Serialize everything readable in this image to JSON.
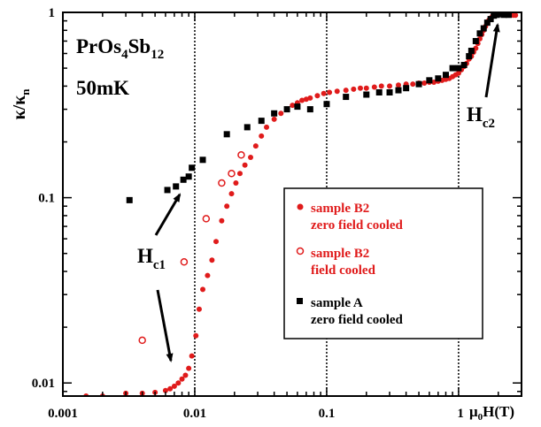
{
  "chart_data": {
    "type": "scatter",
    "title": "",
    "x_axis": {
      "scale": "log",
      "range": [
        0.001,
        3
      ],
      "tick_labels": [
        "0.001",
        "0.01",
        "0.1",
        "1"
      ],
      "tick_values": [
        0.001,
        0.01,
        0.1,
        1
      ],
      "label_main": "μ",
      "label_sub": "0",
      "label_rest": "H(T)"
    },
    "y_axis": {
      "scale": "log",
      "range": [
        0.0085,
        1.0
      ],
      "tick_labels": [
        "0.01",
        "0.1",
        "1"
      ],
      "tick_values": [
        0.01,
        0.1,
        1
      ],
      "label_main": "κ/κ",
      "label_sub": "n"
    },
    "grid": {
      "vertical_dotted_at": [
        0.01,
        0.1,
        1
      ]
    },
    "colors": {
      "red": "#e01b1b",
      "black": "#000000",
      "axis": "#000000"
    },
    "annotations": {
      "material_main": "PrOs",
      "material_sub1": "4",
      "material_mid": "Sb",
      "material_sub2": "12",
      "temperature": "50mK",
      "hc1_main": "H",
      "hc1_sub": "c1",
      "hc2_main": "H",
      "hc2_sub": "c2"
    },
    "legend": {
      "placement": "center-right",
      "entries": [
        {
          "line1": "sample B2",
          "line2": "zero field cooled",
          "marker": "filled-circle",
          "color": "#e01b1b"
        },
        {
          "line1": "sample B2",
          "line2": "field cooled",
          "marker": "open-circle",
          "color": "#e01b1b"
        },
        {
          "line1": "sample A",
          "line2": "zero field cooled",
          "marker": "filled-square",
          "color": "#000000"
        }
      ]
    },
    "series": [
      {
        "name": "sample B2 zero field cooled",
        "marker": "filled-circle",
        "color": "#e01b1b",
        "x": [
          0.0015,
          0.002,
          0.003,
          0.004,
          0.005,
          0.006,
          0.0065,
          0.007,
          0.0075,
          0.008,
          0.0085,
          0.009,
          0.0095,
          0.0102,
          0.0108,
          0.0115,
          0.0125,
          0.0135,
          0.0145,
          0.016,
          0.0175,
          0.019,
          0.0205,
          0.022,
          0.024,
          0.0265,
          0.029,
          0.032,
          0.035,
          0.04,
          0.045,
          0.05,
          0.055,
          0.06,
          0.065,
          0.07,
          0.075,
          0.085,
          0.095,
          0.105,
          0.12,
          0.14,
          0.16,
          0.18,
          0.2,
          0.23,
          0.26,
          0.3,
          0.35,
          0.4,
          0.45,
          0.5,
          0.55,
          0.6,
          0.65,
          0.7,
          0.75,
          0.8,
          0.85,
          0.9,
          0.95,
          1.0,
          1.05,
          1.1,
          1.15,
          1.2,
          1.25,
          1.3,
          1.35,
          1.4,
          1.45,
          1.5,
          1.55,
          1.6,
          1.65,
          1.7,
          1.75,
          1.8,
          1.85,
          1.9,
          1.95,
          2.0,
          2.05,
          2.1,
          2.15,
          2.2,
          2.3,
          2.4,
          2.5,
          2.6,
          2.7
        ],
        "y": [
          0.0085,
          0.0085,
          0.0088,
          0.0088,
          0.0089,
          0.0091,
          0.0093,
          0.0096,
          0.01,
          0.0105,
          0.011,
          0.012,
          0.014,
          0.018,
          0.025,
          0.032,
          0.038,
          0.046,
          0.058,
          0.075,
          0.09,
          0.105,
          0.12,
          0.135,
          0.15,
          0.165,
          0.19,
          0.215,
          0.24,
          0.265,
          0.285,
          0.3,
          0.315,
          0.325,
          0.335,
          0.34,
          0.345,
          0.355,
          0.365,
          0.37,
          0.375,
          0.38,
          0.385,
          0.39,
          0.39,
          0.395,
          0.4,
          0.4,
          0.405,
          0.41,
          0.41,
          0.415,
          0.415,
          0.42,
          0.42,
          0.425,
          0.43,
          0.435,
          0.44,
          0.45,
          0.46,
          0.47,
          0.49,
          0.51,
          0.53,
          0.56,
          0.58,
          0.61,
          0.64,
          0.68,
          0.72,
          0.76,
          0.8,
          0.84,
          0.88,
          0.91,
          0.93,
          0.95,
          0.97,
          0.98,
          0.99,
          0.99,
          0.985,
          0.98,
          0.98,
          0.975,
          0.975,
          0.97,
          0.97,
          0.965,
          0.965
        ]
      },
      {
        "name": "sample B2 field cooled",
        "marker": "open-circle",
        "color": "#e01b1b",
        "x": [
          0.004,
          0.0083,
          0.0122,
          0.016,
          0.019,
          0.0225
        ],
        "y": [
          0.017,
          0.045,
          0.077,
          0.12,
          0.135,
          0.17
        ]
      },
      {
        "name": "sample A zero field cooled",
        "marker": "filled-square",
        "color": "#000000",
        "x": [
          0.0032,
          0.0062,
          0.0072,
          0.0082,
          0.009,
          0.0095,
          0.0115,
          0.0175,
          0.025,
          0.032,
          0.04,
          0.05,
          0.06,
          0.075,
          0.1,
          0.14,
          0.2,
          0.25,
          0.3,
          0.35,
          0.4,
          0.5,
          0.6,
          0.7,
          0.8,
          0.9,
          1.0,
          1.1,
          1.2,
          1.25,
          1.35,
          1.45,
          1.55,
          1.65,
          1.75,
          1.85,
          1.95,
          2.05,
          2.2,
          2.4
        ],
        "y": [
          0.097,
          0.11,
          0.115,
          0.125,
          0.13,
          0.145,
          0.16,
          0.22,
          0.24,
          0.26,
          0.285,
          0.3,
          0.31,
          0.3,
          0.32,
          0.35,
          0.36,
          0.37,
          0.37,
          0.38,
          0.39,
          0.41,
          0.43,
          0.44,
          0.46,
          0.5,
          0.5,
          0.52,
          0.58,
          0.62,
          0.7,
          0.77,
          0.82,
          0.88,
          0.92,
          0.96,
          0.97,
          0.98,
          0.97,
          0.97
        ]
      }
    ]
  }
}
